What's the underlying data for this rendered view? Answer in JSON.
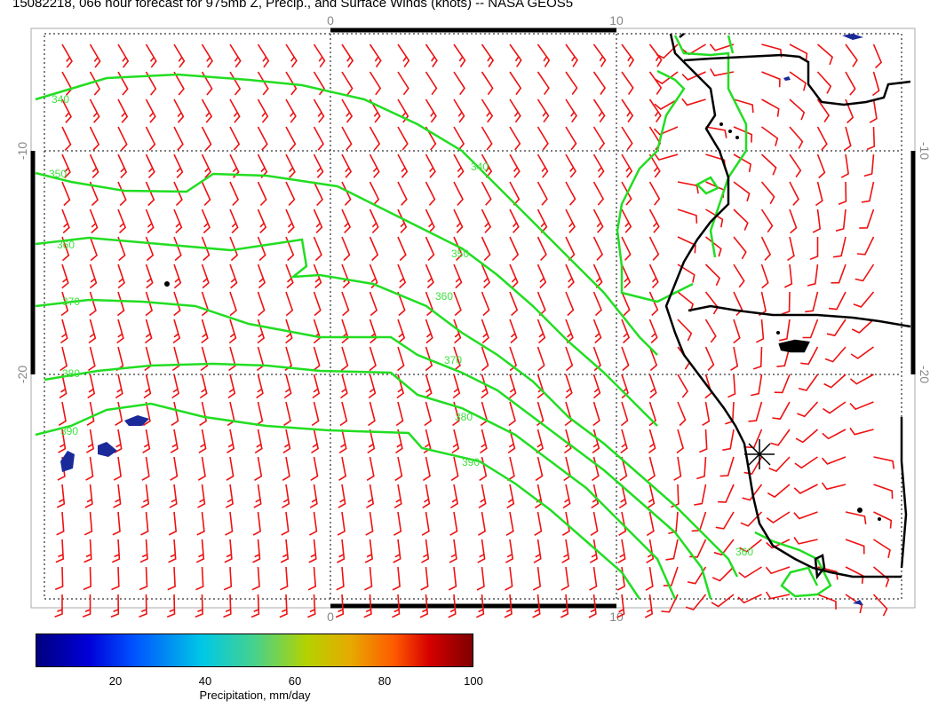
{
  "title": "15082218, 066 hour forecast for 975mb Z, Precip., and Surface Winds (knots) -- NASA GEOS5",
  "axes": {
    "top_labels": [
      "0",
      "10"
    ],
    "bottom_labels": [
      "0",
      "10"
    ],
    "left_labels": [
      "-10",
      "-20"
    ],
    "right_labels": [
      "-10",
      "-20"
    ]
  },
  "contour_labels": [
    "340",
    "350",
    "360",
    "370",
    "380",
    "390",
    "340",
    "350",
    "360",
    "370",
    "380",
    "390",
    "360"
  ],
  "colorbar": {
    "ticks": [
      "20",
      "40",
      "60",
      "80",
      "100"
    ],
    "label": "Precipitation, mm/day",
    "colors": [
      "#00007f",
      "#0000d8",
      "#0050ff",
      "#00c8e6",
      "#46d28c",
      "#b4d200",
      "#e6aa00",
      "#ff5a00",
      "#d70000",
      "#7f0000"
    ]
  },
  "map_colors": {
    "contour": "#22dd22",
    "wind_barb": "#ee1111",
    "coastline": "#000000",
    "grid": "#000000"
  },
  "station_marker": "asterisk"
}
